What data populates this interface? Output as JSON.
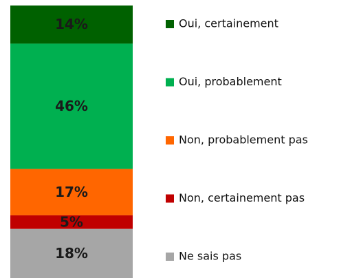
{
  "chart_data": {
    "type": "bar",
    "stacked": true,
    "categories": [
      null
    ],
    "ylim": [
      0,
      100
    ],
    "series": [
      {
        "name": "Oui, certainement",
        "color": "#006100",
        "values": [
          14
        ],
        "value_labels": [
          "14%"
        ]
      },
      {
        "name": "Oui, probablement",
        "color": "#00b050",
        "values": [
          46
        ],
        "value_labels": [
          "46%"
        ]
      },
      {
        "name": "Non, probablement pas",
        "color": "#ff6600",
        "values": [
          17
        ],
        "value_labels": [
          "17%"
        ]
      },
      {
        "name": "Non, certainement pas",
        "color": "#c00000",
        "values": [
          5
        ],
        "value_labels": [
          "5%"
        ]
      },
      {
        "name": "Ne sais pas",
        "color": "#a6a6a6",
        "values": [
          18
        ],
        "value_labels": [
          "18%"
        ]
      }
    ]
  }
}
